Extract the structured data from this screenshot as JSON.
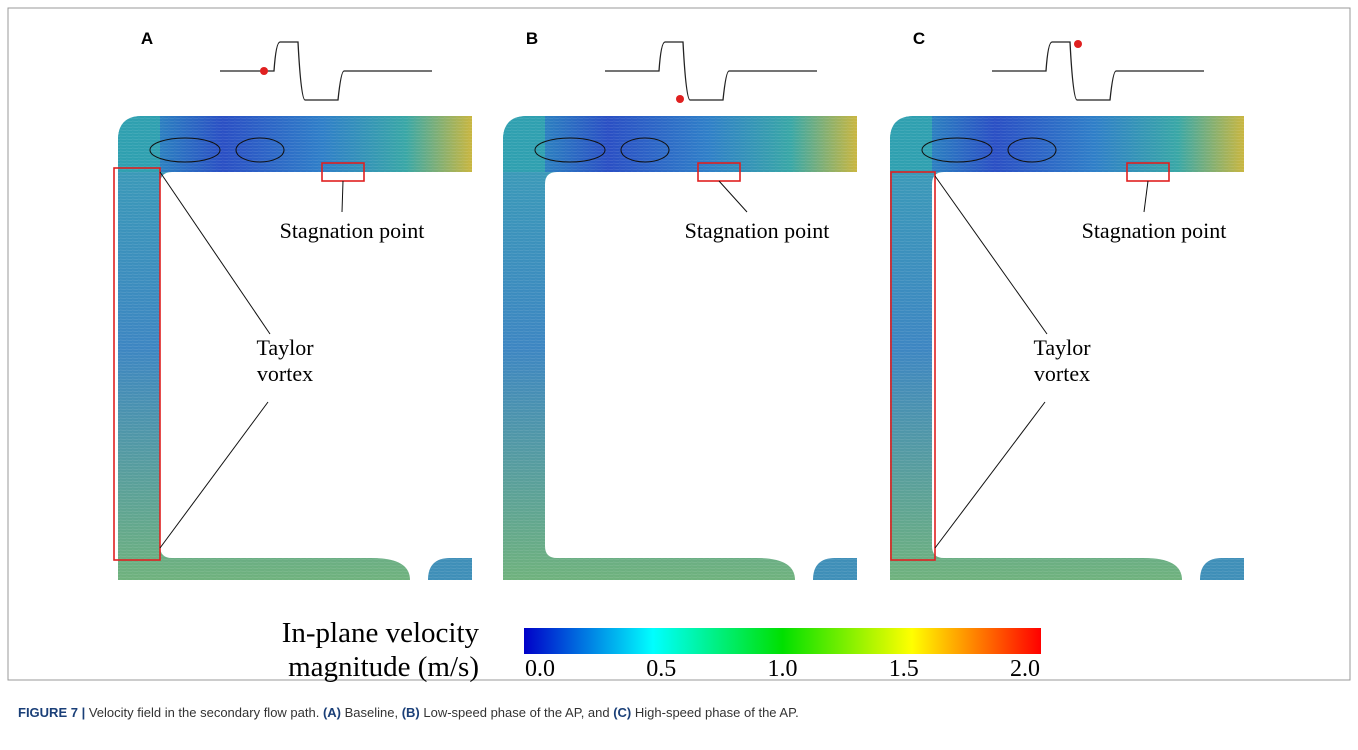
{
  "panels": [
    {
      "label": "A",
      "stagnation": "Stagnation point",
      "taylor": [
        "Taylor",
        "vortex"
      ]
    },
    {
      "label": "B",
      "stagnation": "Stagnation point"
    },
    {
      "label": "C",
      "stagnation": "Stagnation point",
      "taylor": [
        "Taylor",
        "vortex"
      ]
    }
  ],
  "colorbar": {
    "title": [
      "In-plane velocity",
      "magnitude (m/s)"
    ],
    "range": [
      0,
      2
    ],
    "ticks": [
      {
        "value": 0,
        "label": "0.0"
      },
      {
        "value": 0.5,
        "label": "0.5"
      },
      {
        "value": 1,
        "label": "1.0"
      },
      {
        "value": 1.5,
        "label": "1.5"
      },
      {
        "value": 2,
        "label": "2.0"
      }
    ]
  },
  "caption": [
    {
      "text": "FIGURE 7 |",
      "bold": true
    },
    {
      "text": " Velocity field in the secondary flow path. ",
      "bold": false
    },
    {
      "text": "(A)",
      "bold": true
    },
    {
      "text": " Baseline, ",
      "bold": false
    },
    {
      "text": "(B)",
      "bold": true
    },
    {
      "text": " Low-speed phase of the AP, and ",
      "bold": false
    },
    {
      "text": "(C)",
      "bold": true
    },
    {
      "text": " High-speed phase of the AP.",
      "bold": false
    }
  ]
}
